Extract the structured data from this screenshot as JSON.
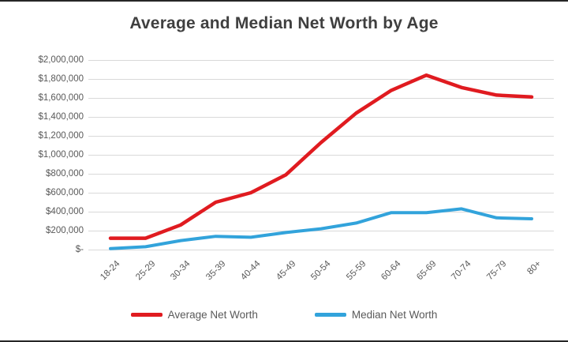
{
  "chart_data": {
    "type": "line",
    "title": "Average and Median Net Worth by Age",
    "categories": [
      "18-24",
      "25-29",
      "30-34",
      "35-39",
      "40-44",
      "45-49",
      "50-54",
      "55-59",
      "60-64",
      "65-69",
      "70-74",
      "75-79",
      "80+"
    ],
    "series": [
      {
        "name": "Average Net Worth",
        "color": "#e01b20",
        "values": [
          120000,
          120000,
          260000,
          500000,
          600000,
          790000,
          1130000,
          1440000,
          1680000,
          1840000,
          1710000,
          1630000,
          1610000
        ]
      },
      {
        "name": "Median Net Worth",
        "color": "#32a3db",
        "values": [
          10000,
          30000,
          95000,
          140000,
          130000,
          180000,
          220000,
          280000,
          390000,
          390000,
          430000,
          335000,
          325000
        ]
      }
    ],
    "y_axis": {
      "tick_labels": [
        "$2,000,000",
        "$1,800,000",
        "$1,600,000",
        "$1,400,000",
        "$1,200,000",
        "$1,000,000",
        "$800,000",
        "$600,000",
        "$400,000",
        "$200,000",
        "$-"
      ],
      "tick_values": [
        2000000,
        1800000,
        1600000,
        1400000,
        1200000,
        1000000,
        800000,
        600000,
        400000,
        200000,
        0
      ],
      "min": 0,
      "max": 2000000,
      "step": 200000
    },
    "xlabel": "",
    "ylabel": "",
    "grid": true,
    "legend_position": "bottom"
  },
  "colors": {
    "title_text": "#3f3f3f",
    "axis_text": "#595959",
    "gridline": "#d9d9d9",
    "background": "#ffffff",
    "frame_border": "#262626"
  }
}
